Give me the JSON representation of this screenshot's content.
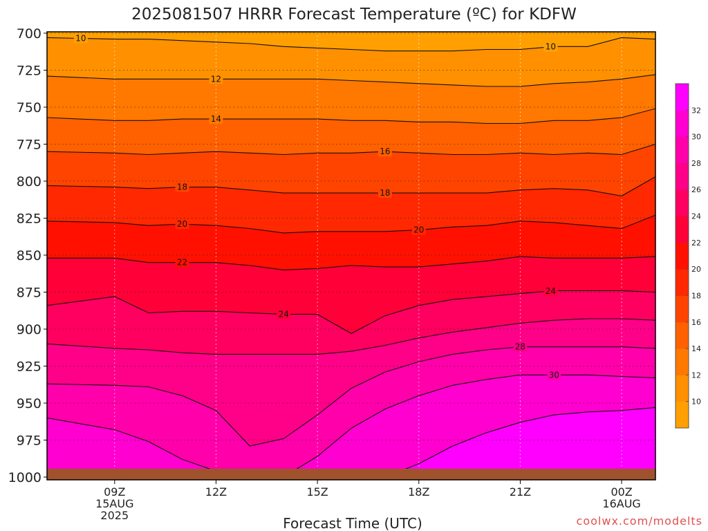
{
  "chart_data": {
    "type": "contour",
    "title": "2025081507 HRRR Forecast Temperature (ºC) for KDFW",
    "xlabel": "Forecast Time (UTC)",
    "ylabel": "",
    "y_axis": {
      "quantity": "pressure_hPa",
      "inverted": true,
      "range": [
        1000,
        700
      ],
      "ticks": [
        "700",
        "725",
        "750",
        "775",
        "800",
        "825",
        "850",
        "875",
        "900",
        "925",
        "950",
        "975",
        "1000"
      ]
    },
    "x_axis": {
      "range_hours_utc": [
        7,
        25
      ],
      "ticks": [
        {
          "hour": 9,
          "lines": [
            "09Z",
            "15AUG",
            "2025"
          ]
        },
        {
          "hour": 12,
          "lines": [
            "12Z"
          ]
        },
        {
          "hour": 15,
          "lines": [
            "15Z"
          ]
        },
        {
          "hour": 18,
          "lines": [
            "18Z"
          ]
        },
        {
          "hour": 21,
          "lines": [
            "21Z"
          ]
        },
        {
          "hour": 24,
          "lines": [
            "00Z",
            "16AUG"
          ]
        }
      ]
    },
    "grid": true,
    "grid_style": "dotted",
    "hours": [
      7,
      9,
      10,
      11,
      12,
      13,
      14,
      15,
      16,
      17,
      18,
      19,
      20,
      21,
      22,
      23,
      24,
      25
    ],
    "isotherms": [
      {
        "level": 10,
        "label": "10",
        "pressure": [
          703,
          704,
          704,
          705,
          706,
          707,
          709,
          710,
          711,
          712,
          712,
          712,
          711,
          711,
          709,
          709,
          703,
          704
        ],
        "labels_at": [
          8,
          21.9
        ]
      },
      {
        "level": 12,
        "label": "12",
        "pressure": [
          729,
          731,
          731,
          731,
          731,
          731,
          731,
          731,
          732,
          733,
          734,
          735,
          736,
          736,
          734,
          733,
          731,
          728
        ],
        "labels_at": [
          12
        ]
      },
      {
        "level": 14,
        "label": "14",
        "pressure": [
          757,
          759,
          759,
          758,
          758,
          758,
          758,
          758,
          759,
          759,
          760,
          760,
          761,
          761,
          759,
          759,
          757,
          751
        ],
        "labels_at": [
          12
        ]
      },
      {
        "level": 16,
        "label": "16",
        "pressure": [
          780,
          781,
          782,
          781,
          780,
          781,
          782,
          781,
          781,
          780,
          781,
          782,
          782,
          781,
          782,
          781,
          782,
          775
        ],
        "labels_at": [
          17
        ]
      },
      {
        "level": 18,
        "label": "18",
        "pressure": [
          803,
          804,
          805,
          804,
          804,
          806,
          808,
          808,
          808,
          808,
          808,
          808,
          808,
          806,
          805,
          806,
          810,
          797
        ],
        "labels_at": [
          11,
          17
        ]
      },
      {
        "level": 20,
        "label": "20",
        "pressure": [
          827,
          828,
          830,
          829,
          830,
          832,
          835,
          834,
          834,
          834,
          833,
          831,
          830,
          827,
          828,
          830,
          832,
          823
        ],
        "labels_at": [
          11,
          18
        ]
      },
      {
        "level": 22,
        "label": "22",
        "pressure": [
          852,
          852,
          855,
          855,
          855,
          857,
          860,
          859,
          857,
          858,
          858,
          856,
          854,
          851,
          852,
          852,
          852,
          851
        ],
        "labels_at": [
          11
        ]
      },
      {
        "level": 24,
        "label": "24",
        "pressure": [
          884,
          878,
          889,
          888,
          888,
          889,
          890,
          890,
          903,
          891,
          884,
          880,
          878,
          876,
          874,
          874,
          874,
          875
        ],
        "labels_at": [
          14,
          21.9
        ]
      },
      {
        "level": 26,
        "label": "",
        "pressure": [
          910,
          913,
          914,
          916,
          917,
          917,
          917,
          917,
          915,
          911,
          906,
          902,
          899,
          896,
          894,
          893,
          893,
          894
        ]
      },
      {
        "level": 28,
        "label": "28",
        "pressure": [
          937,
          938,
          939,
          945,
          955,
          979,
          974,
          958,
          940,
          929,
          922,
          917,
          914,
          912,
          912,
          912,
          912,
          913
        ],
        "labels_at": [
          21
        ]
      },
      {
        "level": 30,
        "label": "30",
        "pressure": [
          960,
          968,
          976,
          988,
          996,
          1000,
          1000,
          986,
          967,
          954,
          945,
          938,
          934,
          931,
          931,
          931,
          932,
          933
        ],
        "labels_at": [
          22
        ]
      },
      {
        "level": 32,
        "label": "",
        "pressure": [
          1000,
          1000,
          1000,
          1000,
          1000,
          1000,
          1000,
          1000,
          1000,
          1000,
          991,
          979,
          970,
          963,
          958,
          956,
          955,
          953
        ]
      }
    ],
    "colorbar": {
      "ticks": [
        "10",
        "12",
        "14",
        "16",
        "18",
        "20",
        "22",
        "24",
        "26",
        "28",
        "30",
        "32"
      ],
      "colors": [
        "#ffa000",
        "#ff9000",
        "#ff7800",
        "#ff6000",
        "#ff4400",
        "#ff2800",
        "#ff1000",
        "#ff0038",
        "#ff0060",
        "#ff0088",
        "#ff00aa",
        "#ff00d0",
        "#ff00ff"
      ]
    },
    "ground_color": "#a0522d",
    "credit": "coolwx.com/modelts"
  }
}
